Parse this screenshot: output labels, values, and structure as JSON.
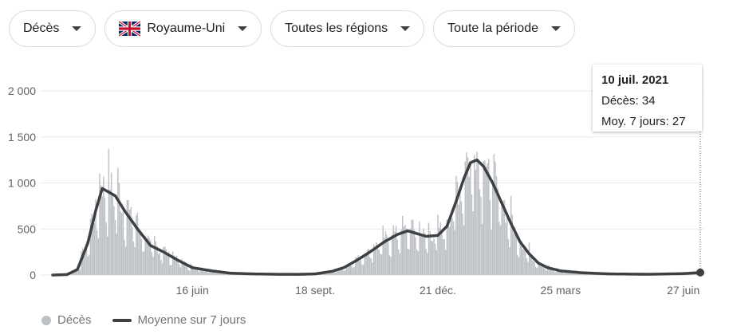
{
  "filters": [
    {
      "label": "Décès",
      "name": "filter-metric"
    },
    {
      "label": "Royaume-Uni",
      "name": "filter-country",
      "flag": "uk-flag-icon"
    },
    {
      "label": "Toutes les régions",
      "name": "filter-region"
    },
    {
      "label": "Toute la période",
      "name": "filter-period"
    }
  ],
  "tooltip": {
    "date": "10 juil. 2021",
    "deaths_label": "Décès: 34",
    "avg_label": "Moy. 7 jours: 27"
  },
  "legend": {
    "bars_label": "Décès",
    "line_label": "Moyenne sur 7 jours"
  },
  "colors": {
    "bars": "#bdc1c6",
    "line": "#3c4043",
    "grid": "#e8eaed",
    "axis_text": "#5f6368"
  },
  "chart_data": {
    "type": "bar",
    "start_date": "2020-03-01",
    "end_date": "2021-07-10",
    "y_ticks": [
      0,
      500,
      1000,
      1500,
      2000
    ],
    "y_tick_labels": [
      "0",
      "500",
      "1 000",
      "1 500",
      "2 000"
    ],
    "ylim": [
      0,
      2000
    ],
    "x_ticks": [
      {
        "date": "2020-06-16",
        "label": "16 juin"
      },
      {
        "date": "2020-09-18",
        "label": "18 sept."
      },
      {
        "date": "2020-12-21",
        "label": "21 déc."
      },
      {
        "date": "2021-03-25",
        "label": "25 mars"
      },
      {
        "date": "2021-06-27",
        "label": "27 juin"
      }
    ],
    "series": [
      {
        "name": "Décès",
        "kind": "bar"
      },
      {
        "name": "Moyenne sur 7 jours",
        "kind": "line"
      }
    ],
    "avg_keypoints": [
      [
        "2020-03-01",
        0
      ],
      [
        "2020-03-12",
        5
      ],
      [
        "2020-03-20",
        60
      ],
      [
        "2020-03-28",
        350
      ],
      [
        "2020-04-03",
        700
      ],
      [
        "2020-04-08",
        940
      ],
      [
        "2020-04-13",
        900
      ],
      [
        "2020-04-18",
        860
      ],
      [
        "2020-04-25",
        700
      ],
      [
        "2020-05-05",
        500
      ],
      [
        "2020-05-15",
        320
      ],
      [
        "2020-05-25",
        250
      ],
      [
        "2020-06-05",
        160
      ],
      [
        "2020-06-16",
        80
      ],
      [
        "2020-07-01",
        45
      ],
      [
        "2020-07-15",
        20
      ],
      [
        "2020-08-01",
        12
      ],
      [
        "2020-08-20",
        8
      ],
      [
        "2020-09-05",
        7
      ],
      [
        "2020-09-18",
        12
      ],
      [
        "2020-10-01",
        40
      ],
      [
        "2020-10-10",
        80
      ],
      [
        "2020-10-20",
        160
      ],
      [
        "2020-10-30",
        250
      ],
      [
        "2020-11-10",
        360
      ],
      [
        "2020-11-20",
        440
      ],
      [
        "2020-11-28",
        480
      ],
      [
        "2020-12-05",
        450
      ],
      [
        "2020-12-12",
        420
      ],
      [
        "2020-12-21",
        430
      ],
      [
        "2020-12-28",
        530
      ],
      [
        "2021-01-04",
        800
      ],
      [
        "2021-01-10",
        1050
      ],
      [
        "2021-01-15",
        1220
      ],
      [
        "2021-01-20",
        1250
      ],
      [
        "2021-01-25",
        1180
      ],
      [
        "2021-02-01",
        1000
      ],
      [
        "2021-02-08",
        780
      ],
      [
        "2021-02-15",
        560
      ],
      [
        "2021-02-22",
        360
      ],
      [
        "2021-03-01",
        230
      ],
      [
        "2021-03-08",
        130
      ],
      [
        "2021-03-15",
        80
      ],
      [
        "2021-03-25",
        45
      ],
      [
        "2021-04-10",
        25
      ],
      [
        "2021-05-01",
        12
      ],
      [
        "2021-06-01",
        8
      ],
      [
        "2021-06-27",
        15
      ],
      [
        "2021-07-10",
        27
      ]
    ],
    "last_point": {
      "date": "2021-07-10",
      "deaths": 34,
      "avg": 27
    }
  }
}
